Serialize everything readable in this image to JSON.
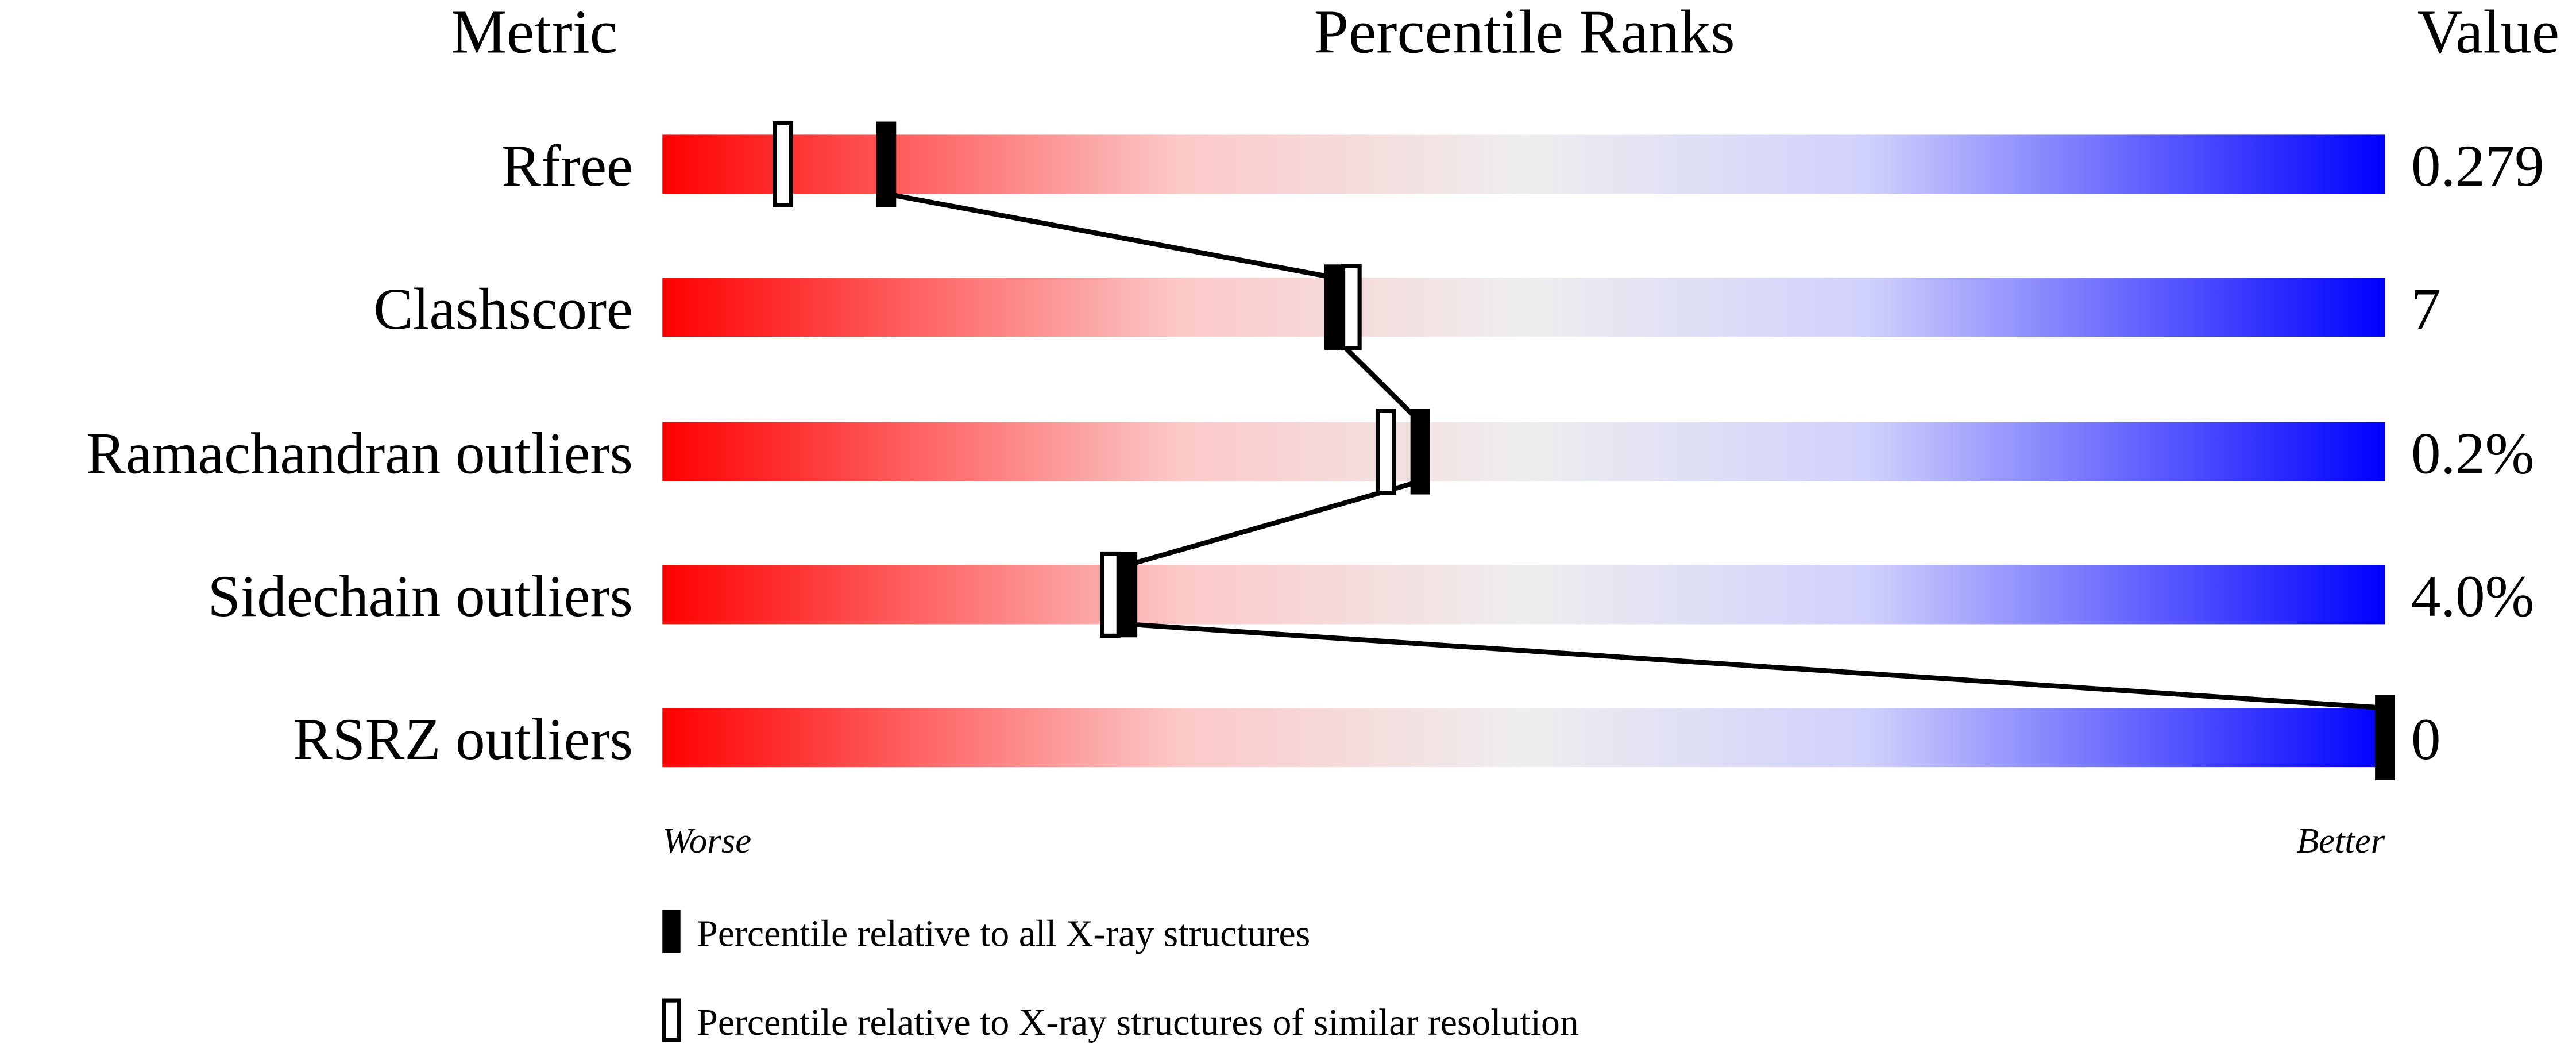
{
  "chart_data": {
    "type": "percentile-bar",
    "headers": {
      "metric": "Metric",
      "ranks": "Percentile Ranks",
      "value": "Value"
    },
    "xlim": [
      0,
      100
    ],
    "colors": {
      "worse": "#ff0000",
      "middle": "#eeeeee",
      "better": "#0000ff"
    },
    "metrics": [
      {
        "name": "Rfree",
        "value": "0.279",
        "percentile_all": 13,
        "percentile_similar": 7
      },
      {
        "name": "Clashscore",
        "value": "7",
        "percentile_all": 39,
        "percentile_similar": 40
      },
      {
        "name": "Ramachandran outliers",
        "value": "0.2%",
        "percentile_all": 44,
        "percentile_similar": 42
      },
      {
        "name": "Sidechain outliers",
        "value": "4.0%",
        "percentile_all": 27,
        "percentile_similar": 26
      },
      {
        "name": "RSRZ outliers",
        "value": "0",
        "percentile_all": 100,
        "percentile_similar": null
      }
    ],
    "axis_labels": {
      "left": "Worse",
      "right": "Better"
    },
    "legend": [
      {
        "marker": "filled",
        "label": "Percentile relative to all X-ray structures"
      },
      {
        "marker": "open",
        "label": "Percentile relative to X-ray structures of similar resolution"
      }
    ]
  }
}
